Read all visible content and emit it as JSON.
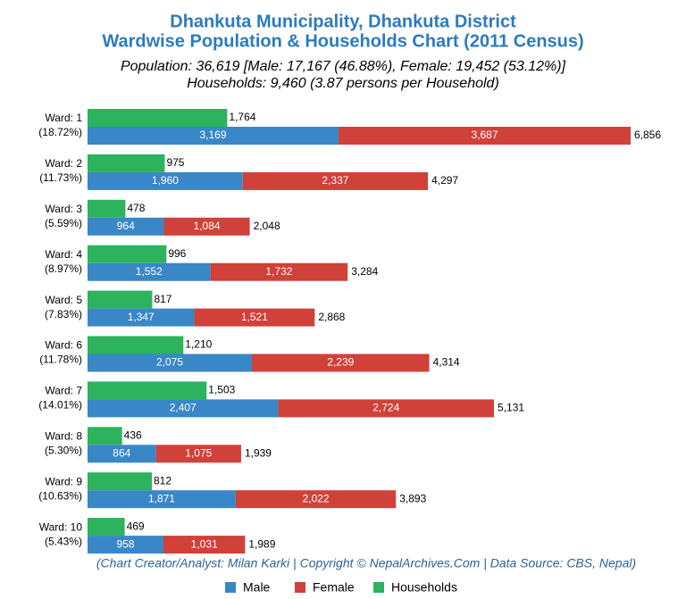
{
  "chart_data": {
    "type": "bar",
    "title": [
      "Dhankuta Municipality, Dhankuta District",
      "Wardwise Population & Households Chart (2011 Census)"
    ],
    "subtitle": [
      "Population: 36,619 [Male: 17,167 (46.88%), Female: 19,452 (53.12%)]",
      "Households: 9,460 (3.87 persons per Household)"
    ],
    "footer": "(Chart Creator/Analyst: Milan Karki | Copyright © NepalArchives.Com | Data Source: CBS, Nepal)",
    "categories": [
      "Ward: 1",
      "Ward: 2",
      "Ward: 3",
      "Ward: 4",
      "Ward: 5",
      "Ward: 6",
      "Ward: 7",
      "Ward: 8",
      "Ward: 9",
      "Ward: 10"
    ],
    "category_notes": [
      "(18.72%)",
      "(11.73%)",
      "(5.59%)",
      "(8.97%)",
      "(7.83%)",
      "(11.78%)",
      "(14.01%)",
      "(5.30%)",
      "(10.63%)",
      "(5.43%)"
    ],
    "series": [
      {
        "name": "Male",
        "color": "#3a87c8",
        "values": [
          3169,
          1960,
          964,
          1552,
          1347,
          2075,
          2407,
          864,
          1871,
          958
        ],
        "value_labels": [
          "3,169",
          "1,960",
          "964",
          "1,552",
          "1,347",
          "2,075",
          "2,407",
          "864",
          "1,871",
          "958"
        ]
      },
      {
        "name": "Female",
        "color": "#d0413a",
        "values": [
          3687,
          2337,
          1084,
          1732,
          1521,
          2239,
          2724,
          1075,
          2022,
          1031
        ],
        "value_labels": [
          "3,687",
          "2,337",
          "1,084",
          "1,732",
          "1,521",
          "2,239",
          "2,724",
          "1,075",
          "2,022",
          "1,031"
        ]
      },
      {
        "name": "Households",
        "color": "#2db35d",
        "values": [
          1764,
          975,
          478,
          996,
          817,
          1210,
          1503,
          436,
          812,
          469
        ],
        "value_labels": [
          "1,764",
          "975",
          "478",
          "996",
          "817",
          "1,210",
          "1,503",
          "436",
          "812",
          "469"
        ]
      }
    ],
    "totals": [
      6856,
      4297,
      2048,
      3284,
      2868,
      4314,
      5131,
      1939,
      3893,
      1989
    ],
    "total_labels": [
      "6,856",
      "4,297",
      "2,048",
      "3,284",
      "2,868",
      "4,314",
      "5,131",
      "1,939",
      "3,893",
      "1,989"
    ]
  }
}
